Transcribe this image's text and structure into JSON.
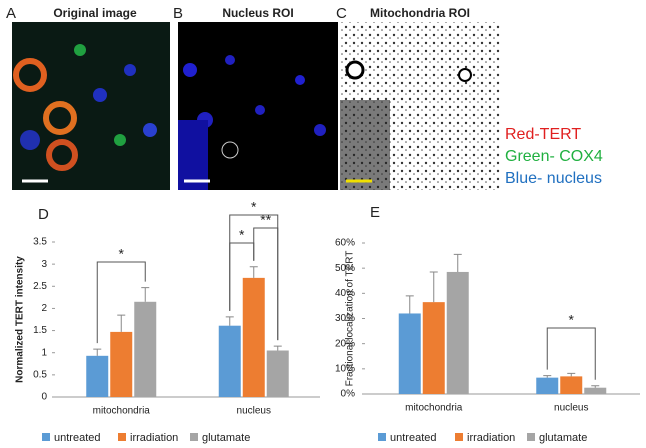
{
  "images": [
    {
      "letter": "A",
      "caption": "Original image"
    },
    {
      "letter": "B",
      "caption": "Nucleus ROI"
    },
    {
      "letter": "C",
      "caption": "Mitochondria ROI"
    }
  ],
  "stain_legend": [
    "Red-TERT",
    "Green- COX4",
    "Blue- nucleus"
  ],
  "chart_data": [
    {
      "type": "bar",
      "panel": "D",
      "ylabel": "Normalized TERT intensity",
      "categories": [
        "mitochondria",
        "nucleus"
      ],
      "series": [
        {
          "name": "untreated",
          "color": "#5b9bd5",
          "values": [
            0.93,
            1.61
          ],
          "errors": [
            0.15,
            0.2
          ]
        },
        {
          "name": "irradiation",
          "color": "#ed7d31",
          "values": [
            1.47,
            2.69
          ],
          "errors": [
            0.38,
            0.25
          ]
        },
        {
          "name": "glutamate",
          "color": "#a5a5a5",
          "values": [
            2.15,
            1.05
          ],
          "errors": [
            0.32,
            0.1
          ]
        }
      ],
      "ylim": [
        0,
        3.5
      ],
      "yticks": [
        0,
        0.5,
        1,
        1.5,
        2,
        2.5,
        3,
        3.5
      ],
      "annotations": [
        "*",
        "*",
        "*",
        "**"
      ]
    },
    {
      "type": "bar",
      "panel": "E",
      "ylabel": "Fractional localization of TERT",
      "categories": [
        "mitochondria",
        "nucleus"
      ],
      "series": [
        {
          "name": "untreated",
          "color": "#5b9bd5",
          "values": [
            32,
            6.5
          ],
          "errors": [
            7,
            0.8
          ]
        },
        {
          "name": "irradiation",
          "color": "#ed7d31",
          "values": [
            36.5,
            7
          ],
          "errors": [
            12,
            1.2
          ]
        },
        {
          "name": "glutamate",
          "color": "#a5a5a5",
          "values": [
            48.5,
            2.5
          ],
          "errors": [
            7,
            0.8
          ]
        }
      ],
      "ylim": [
        0,
        60
      ],
      "yticks": [
        {
          "value": 0,
          "label": "0%"
        },
        {
          "value": 10,
          "label": "10%"
        },
        {
          "value": 20,
          "label": "20%"
        },
        {
          "value": 30,
          "label": "30%"
        },
        {
          "value": 40,
          "label": "40%"
        },
        {
          "value": 50,
          "label": "50%"
        },
        {
          "value": 60,
          "label": "60%"
        }
      ],
      "annotations": [
        "*"
      ]
    }
  ]
}
